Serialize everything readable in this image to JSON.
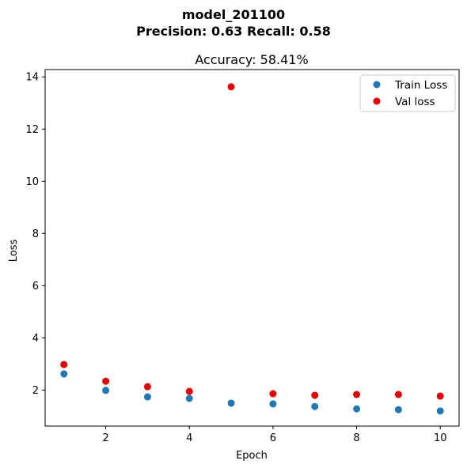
{
  "chart_data": {
    "type": "scatter",
    "suptitle_line1": "model_201100",
    "suptitle_line2": "Precision: 0.63 Recall: 0.58",
    "title": "Accuracy: 58.41%",
    "xlabel": "Epoch",
    "ylabel": "Loss",
    "xlim": [
      0.55,
      10.45
    ],
    "ylim": [
      0.62,
      14.28
    ],
    "xticks": [
      2,
      4,
      6,
      8,
      10
    ],
    "yticks": [
      2,
      4,
      6,
      8,
      10,
      12,
      14
    ],
    "grid": false,
    "legend_position": "top-right",
    "series": [
      {
        "name": "Train Loss",
        "color": "#1f77b4",
        "x": [
          1,
          2,
          3,
          4,
          5,
          6,
          7,
          8,
          9,
          10
        ],
        "y": [
          2.62,
          1.99,
          1.74,
          1.68,
          1.5,
          1.47,
          1.37,
          1.28,
          1.25,
          1.2
        ]
      },
      {
        "name": "Val loss",
        "color": "#e60000",
        "x": [
          1,
          2,
          3,
          4,
          5,
          6,
          7,
          8,
          9,
          10
        ],
        "y": [
          2.98,
          2.34,
          2.13,
          1.95,
          13.62,
          1.86,
          1.8,
          1.83,
          1.83,
          1.77
        ]
      }
    ]
  }
}
